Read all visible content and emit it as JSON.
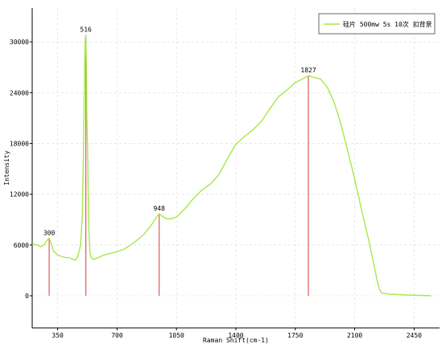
{
  "chart_data": {
    "type": "line",
    "xlabel": "Raman Shift(cm-1)",
    "ylabel": "Intensity",
    "xlim": [
      200,
      2600
    ],
    "ylim": [
      -3800,
      34000
    ],
    "x_ticks": [
      350,
      700,
      1050,
      1400,
      1750,
      2100,
      2450
    ],
    "y_ticks": [
      0,
      6000,
      12000,
      18000,
      24000,
      30000
    ],
    "grid": true,
    "legend_position": "top-right",
    "series": [
      {
        "name": "硅片  500mw  5s  10次 扣背景",
        "color": "#a6e84a",
        "points": [
          [
            200,
            6100
          ],
          [
            230,
            6000
          ],
          [
            250,
            5800
          ],
          [
            270,
            6000
          ],
          [
            285,
            6500
          ],
          [
            300,
            6800
          ],
          [
            310,
            6300
          ],
          [
            325,
            5300
          ],
          [
            350,
            4800
          ],
          [
            380,
            4600
          ],
          [
            400,
            4500
          ],
          [
            420,
            4500
          ],
          [
            440,
            4300
          ],
          [
            455,
            4200
          ],
          [
            470,
            4700
          ],
          [
            485,
            6000
          ],
          [
            495,
            9500
          ],
          [
            502,
            17000
          ],
          [
            508,
            26000
          ],
          [
            512,
            30200
          ],
          [
            516,
            30800
          ],
          [
            519,
            27000
          ],
          [
            522,
            21000
          ],
          [
            524,
            19500
          ],
          [
            527,
            17000
          ],
          [
            532,
            9000
          ],
          [
            540,
            5000
          ],
          [
            548,
            4500
          ],
          [
            560,
            4300
          ],
          [
            590,
            4500
          ],
          [
            620,
            4800
          ],
          [
            660,
            5000
          ],
          [
            700,
            5200
          ],
          [
            740,
            5500
          ],
          [
            780,
            6000
          ],
          [
            820,
            6600
          ],
          [
            860,
            7300
          ],
          [
            900,
            8300
          ],
          [
            930,
            9200
          ],
          [
            948,
            9700
          ],
          [
            965,
            9400
          ],
          [
            990,
            9100
          ],
          [
            1020,
            9100
          ],
          [
            1050,
            9300
          ],
          [
            1100,
            10300
          ],
          [
            1150,
            11500
          ],
          [
            1200,
            12500
          ],
          [
            1250,
            13200
          ],
          [
            1300,
            14300
          ],
          [
            1350,
            16200
          ],
          [
            1400,
            17900
          ],
          [
            1450,
            18800
          ],
          [
            1500,
            19600
          ],
          [
            1550,
            20600
          ],
          [
            1600,
            22100
          ],
          [
            1650,
            23500
          ],
          [
            1700,
            24300
          ],
          [
            1750,
            25200
          ],
          [
            1800,
            25700
          ],
          [
            1827,
            26000
          ],
          [
            1860,
            25800
          ],
          [
            1900,
            25600
          ],
          [
            1940,
            24600
          ],
          [
            1980,
            22800
          ],
          [
            2020,
            20200
          ],
          [
            2060,
            17000
          ],
          [
            2100,
            13800
          ],
          [
            2140,
            10200
          ],
          [
            2180,
            6800
          ],
          [
            2210,
            4000
          ],
          [
            2230,
            2000
          ],
          [
            2245,
            800
          ],
          [
            2260,
            300
          ],
          [
            2300,
            200
          ],
          [
            2400,
            100
          ],
          [
            2480,
            50
          ],
          [
            2550,
            0
          ]
        ]
      }
    ],
    "peaks": [
      {
        "x": 300,
        "y": 6800,
        "label": "300"
      },
      {
        "x": 516,
        "y": 30800,
        "label": "516"
      },
      {
        "x": 948,
        "y": 9700,
        "label": "948"
      },
      {
        "x": 1827,
        "y": 26000,
        "label": "1827"
      }
    ],
    "colors": {
      "series": "#a6e84a",
      "peak_marker": "#e05a5a",
      "grid": "#d9d9d9"
    }
  }
}
